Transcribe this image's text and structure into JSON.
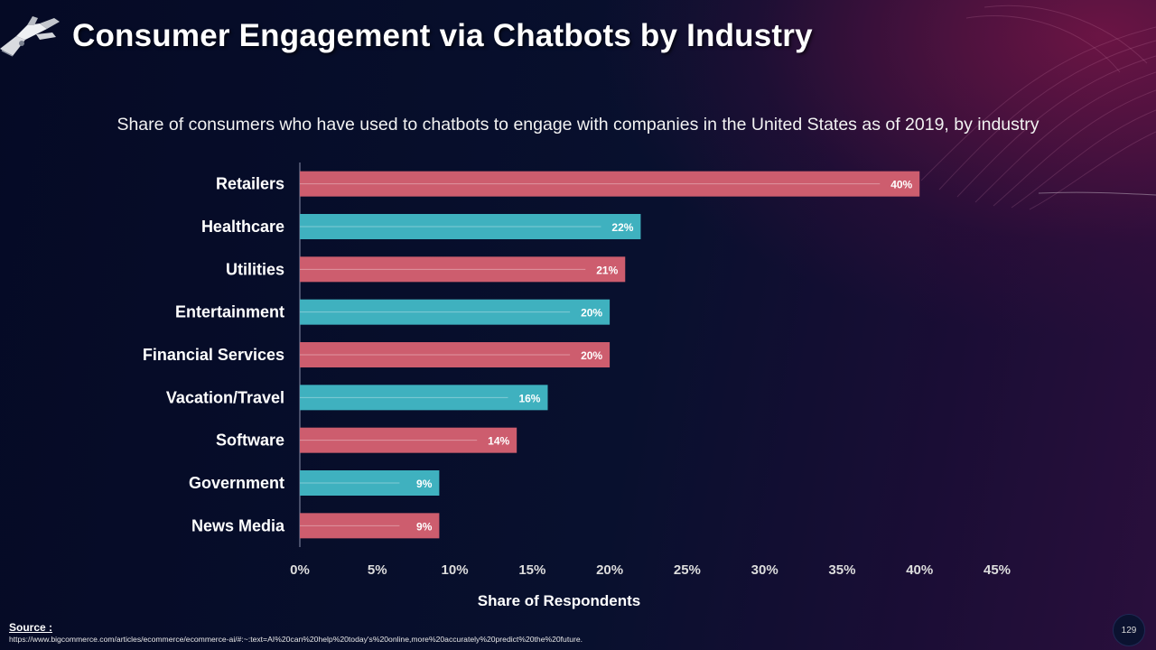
{
  "slide": {
    "title": "Consumer Engagement via Chatbots by Industry",
    "subtitle": "Share of consumers who have used to chatbots to engage with companies in the United States as of 2019, by industry",
    "source_label": "Source :",
    "source_url": "https://www.bigcommerce.com/articles/ecommerce/ecommerce-ai/#:~:text=AI%20can%20help%20today's%20online,more%20accurately%20predict%20the%20future.",
    "page_number": "129"
  },
  "colors": {
    "pink": "#cd5d6e",
    "teal": "#3fb1bf",
    "axis_text": "#dddddd"
  },
  "chart_data": {
    "type": "bar",
    "orientation": "horizontal",
    "categories": [
      "Retailers",
      "Healthcare",
      "Utilities",
      "Entertainment",
      "Financial Services",
      "Vacation/Travel",
      "Software",
      "Government",
      "News Media"
    ],
    "values": [
      40,
      22,
      21,
      20,
      20,
      16,
      14,
      9,
      9
    ],
    "data_labels": [
      "40%",
      "22%",
      "21%",
      "20%",
      "20%",
      "16%",
      "14%",
      "9%",
      "9%"
    ],
    "bar_colors": [
      "pink",
      "teal",
      "pink",
      "teal",
      "pink",
      "teal",
      "pink",
      "teal",
      "pink"
    ],
    "x_ticks": [
      0,
      5,
      10,
      15,
      20,
      25,
      30,
      35,
      40,
      45
    ],
    "x_tick_labels": [
      "0%",
      "5%",
      "10%",
      "15%",
      "20%",
      "25%",
      "30%",
      "35%",
      "40%",
      "45%"
    ],
    "xlim": [
      0,
      45
    ],
    "xlabel": "Share of Respondents",
    "ylabel": "",
    "grid": false,
    "legend": false
  }
}
